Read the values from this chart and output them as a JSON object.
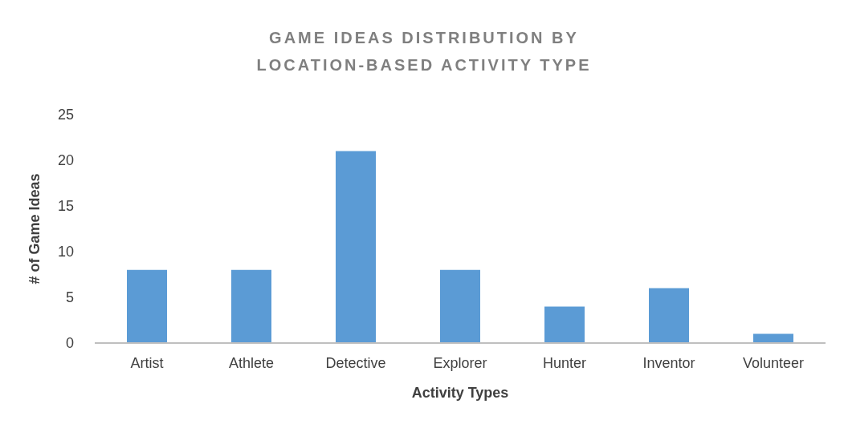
{
  "chart_data": {
    "type": "bar",
    "title": "GAME IDEAS DISTRIBUTION BY LOCATION-BASED ACTIVITY TYPE",
    "xlabel": "Activity Types",
    "ylabel": "# of Game Ideas",
    "categories": [
      "Artist",
      "Athlete",
      "Detective",
      "Explorer",
      "Hunter",
      "Inventor",
      "Volunteer"
    ],
    "values": [
      8,
      8,
      21,
      8,
      4,
      6,
      1
    ],
    "color": "#5b9bd5",
    "ylim": [
      0,
      25
    ],
    "yticks": [
      0,
      5,
      10,
      15,
      20,
      25
    ],
    "grid": false
  }
}
